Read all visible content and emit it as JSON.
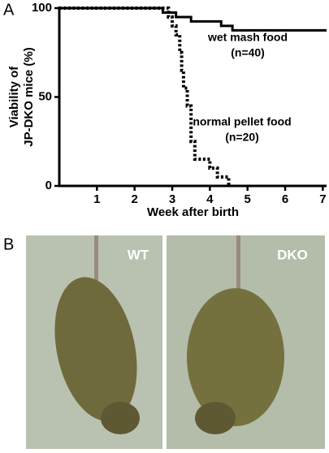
{
  "panel_labels": [
    "A",
    "B"
  ],
  "chart_data": {
    "type": "line",
    "step": "post",
    "ylabel": [
      "Viability of",
      "JP-DKO mice (%)"
    ],
    "xlabel": "Week after birth",
    "xlim": [
      0,
      7.1
    ],
    "xticks": [
      1,
      2,
      3,
      4,
      5,
      6,
      7
    ],
    "ylim": [
      0,
      100
    ],
    "yticks": [
      0,
      50,
      100
    ],
    "series": [
      {
        "name": "wet mash food",
        "sublabel": "(n=40)",
        "color": "#000000",
        "linestyle": "solid",
        "x": [
          0,
          2.75,
          3.1,
          3.5,
          4.3,
          4.6,
          7.1
        ],
        "values": [
          100,
          97.5,
          95,
          92.5,
          90,
          87.5,
          87.5
        ]
      },
      {
        "name": "normal pellet food",
        "sublabel": "(n=20)",
        "color": "#000000",
        "linestyle": "dotted",
        "x": [
          0,
          2.9,
          3.0,
          3.1,
          3.2,
          3.25,
          3.3,
          3.4,
          3.5,
          3.6,
          4.0,
          4.2,
          4.5
        ],
        "values": [
          100,
          95,
          90,
          85,
          75,
          65,
          55,
          45,
          25,
          15,
          10,
          5,
          0
        ]
      }
    ]
  },
  "photos": {
    "labels": [
      "WT",
      "DKO"
    ]
  }
}
